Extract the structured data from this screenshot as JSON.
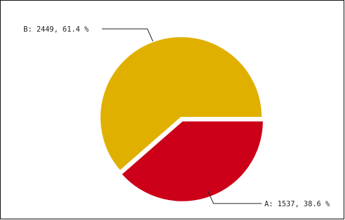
{
  "chart_data": {
    "type": "pie",
    "title": "",
    "slices": [
      {
        "name": "A",
        "value": 1537,
        "percent": 38.6,
        "label": "A: 1537, 38.6 %",
        "color": "#cc0019"
      },
      {
        "name": "B",
        "value": 2449,
        "percent": 61.4,
        "label": "B: 2449, 61.4 %",
        "color": "#e0b000"
      }
    ],
    "legend": "none",
    "start_angle_deg": 0,
    "direction": "clockwise",
    "explode": [
      "A"
    ]
  },
  "colors": {
    "border": "#111111",
    "background": "#ffffff",
    "slice_edge": "#ffffff",
    "leader_line": "#222222"
  }
}
